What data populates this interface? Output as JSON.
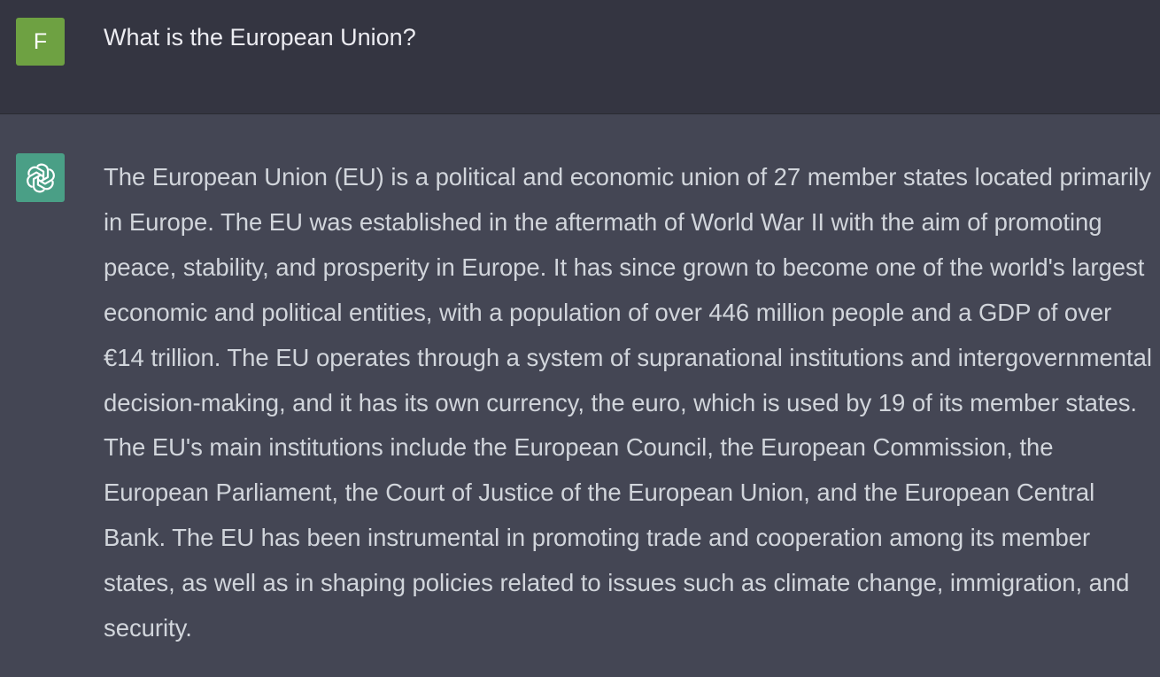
{
  "user_message": {
    "avatar_letter": "F",
    "avatar_color": "#6ea142",
    "text": "What is the European Union?"
  },
  "assistant_message": {
    "avatar_icon": "openai-logo-icon",
    "avatar_color": "#4a9f86",
    "text": "The European Union (EU) is a political and economic union of 27 member states located primarily in Europe. The EU was established in the aftermath of World War II with the aim of promoting peace, stability, and prosperity in Europe. It has since grown to become one of the world's largest economic and political entities, with a population of over 446 million people and a GDP of over €14 trillion. The EU operates through a system of supranational institutions and intergovernmental decision-making, and it has its own currency, the euro, which is used by 19 of its member states. The EU's main institutions include the European Council, the European Commission, the European Parliament, the Court of Justice of the European Union, and the European Central Bank. The EU has been instrumental in promoting trade and cooperation among its member states, as well as in shaping policies related to issues such as climate change, immigration, and security."
  },
  "colors": {
    "user_row_bg": "#343541",
    "assistant_row_bg": "#444654",
    "user_text": "#ececf1",
    "assistant_text": "#d1d5db"
  }
}
